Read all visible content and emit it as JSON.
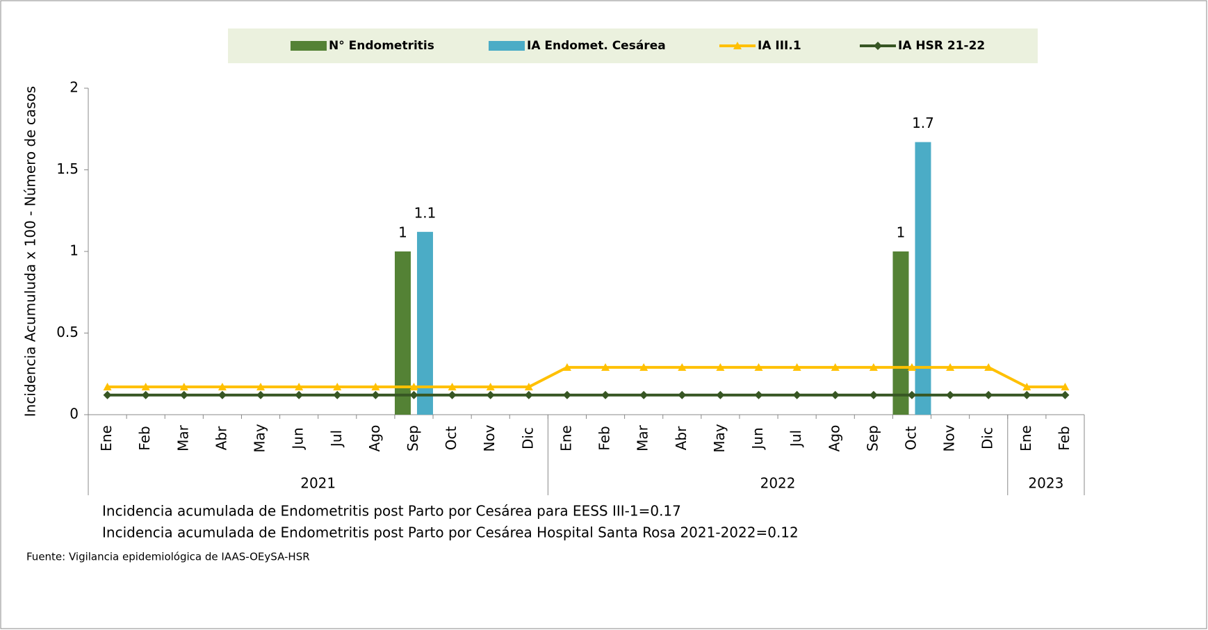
{
  "chart_data": {
    "type": "bar",
    "y_label": "Incidencia Acumuluda x 100 - Número de casos",
    "categories": [
      "Ene",
      "Feb",
      "Mar",
      "Abr",
      "May",
      "Jun",
      "Jul",
      "Ago",
      "Sep",
      "Oct",
      "Nov",
      "Dic",
      "Ene",
      "Feb",
      "Mar",
      "Abr",
      "May",
      "Jun",
      "Jul",
      "Ago",
      "Sep",
      "Oct",
      "Nov",
      "Dic",
      "Ene",
      "Feb"
    ],
    "category_groups": [
      {
        "label": "2021",
        "span": 12
      },
      {
        "label": "2022",
        "span": 12
      },
      {
        "label": "2023",
        "span": 2
      }
    ],
    "series": [
      {
        "name": "N° Endometritis",
        "type": "bar",
        "color": "#548235",
        "values": [
          null,
          null,
          null,
          null,
          null,
          null,
          null,
          null,
          1,
          null,
          null,
          null,
          null,
          null,
          null,
          null,
          null,
          null,
          null,
          null,
          null,
          1,
          null,
          null,
          null,
          null
        ]
      },
      {
        "name": "IA Endomet. Cesárea",
        "type": "bar",
        "color": "#4bacc6",
        "values": [
          null,
          null,
          null,
          null,
          null,
          null,
          null,
          null,
          1.12,
          null,
          null,
          null,
          null,
          null,
          null,
          null,
          null,
          null,
          null,
          null,
          null,
          1.67,
          null,
          null,
          null,
          null
        ],
        "value_labels": [
          null,
          null,
          null,
          null,
          null,
          null,
          null,
          null,
          "1.1",
          null,
          null,
          null,
          null,
          null,
          null,
          null,
          null,
          null,
          null,
          null,
          null,
          "1.7",
          null,
          null,
          null,
          null
        ]
      },
      {
        "name": "IA  III.1",
        "type": "line",
        "marker": "triangle",
        "color": "#ffc000",
        "values": [
          0.17,
          0.17,
          0.17,
          0.17,
          0.17,
          0.17,
          0.17,
          0.17,
          0.17,
          0.17,
          0.17,
          0.17,
          0.29,
          0.29,
          0.29,
          0.29,
          0.29,
          0.29,
          0.29,
          0.29,
          0.29,
          0.29,
          0.29,
          0.29,
          0.17,
          0.17
        ]
      },
      {
        "name": "IA HSR 21-22",
        "type": "line",
        "marker": "diamond",
        "color": "#375623",
        "values": [
          0.12,
          0.12,
          0.12,
          0.12,
          0.12,
          0.12,
          0.12,
          0.12,
          0.12,
          0.12,
          0.12,
          0.12,
          0.12,
          0.12,
          0.12,
          0.12,
          0.12,
          0.12,
          0.12,
          0.12,
          0.12,
          0.12,
          0.12,
          0.12,
          0.12,
          0.12
        ]
      }
    ],
    "ylim": [
      0,
      2
    ],
    "yticks": [
      0,
      0.5,
      1,
      1.5,
      2
    ],
    "notes": [
      "Incidencia acumulada de Endometritis post Parto por Cesárea para EESS III-1=0.17",
      "Incidencia acumulada de Endometritis post Parto por Cesárea Hospital Santa Rosa 2021-2022=0.12"
    ],
    "source": "Fuente: Vigilancia epidemiológica de IAAS-OEySA-HSR"
  }
}
